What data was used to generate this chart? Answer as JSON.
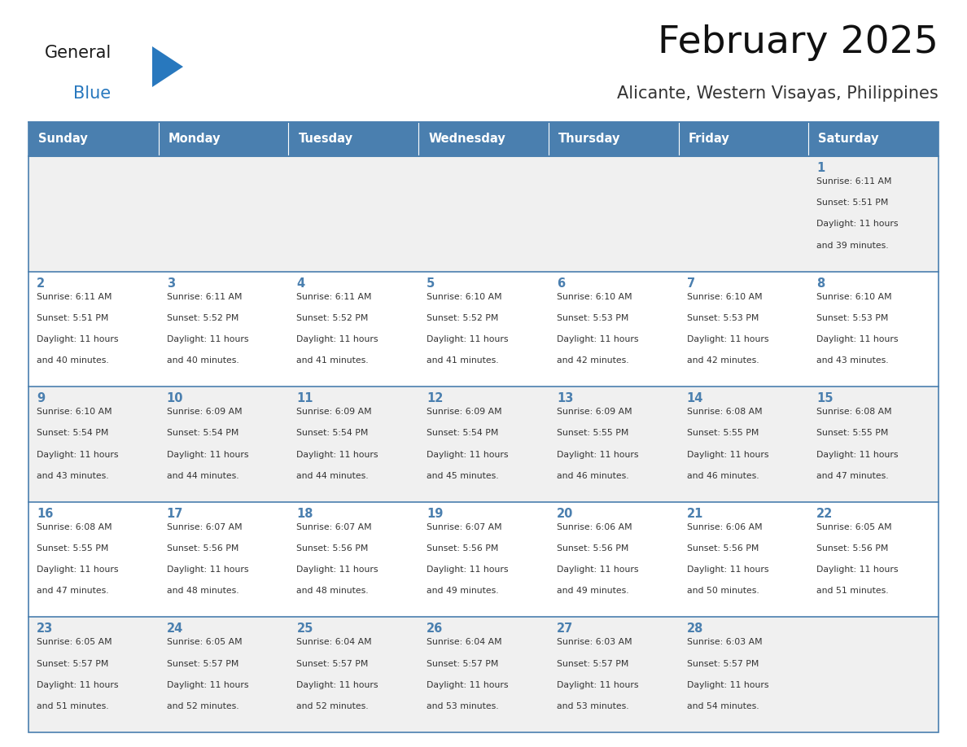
{
  "title": "February 2025",
  "subtitle": "Alicante, Western Visayas, Philippines",
  "days_of_week": [
    "Sunday",
    "Monday",
    "Tuesday",
    "Wednesday",
    "Thursday",
    "Friday",
    "Saturday"
  ],
  "header_bg": "#4a7faf",
  "header_text": "#ffffff",
  "row_bg_1": "#f0f0f0",
  "row_bg_2": "#ffffff",
  "cell_border": "#4a7faf",
  "day_number_color": "#4a7faf",
  "text_color": "#333333",
  "logo_general_color": "#1a1a1a",
  "logo_blue_color": "#2878be",
  "calendar_data": [
    {
      "day": 1,
      "col": 6,
      "row": 0,
      "sunrise": "6:11 AM",
      "sunset": "5:51 PM",
      "daylight": "11 hours and 39 minutes."
    },
    {
      "day": 2,
      "col": 0,
      "row": 1,
      "sunrise": "6:11 AM",
      "sunset": "5:51 PM",
      "daylight": "11 hours and 40 minutes."
    },
    {
      "day": 3,
      "col": 1,
      "row": 1,
      "sunrise": "6:11 AM",
      "sunset": "5:52 PM",
      "daylight": "11 hours and 40 minutes."
    },
    {
      "day": 4,
      "col": 2,
      "row": 1,
      "sunrise": "6:11 AM",
      "sunset": "5:52 PM",
      "daylight": "11 hours and 41 minutes."
    },
    {
      "day": 5,
      "col": 3,
      "row": 1,
      "sunrise": "6:10 AM",
      "sunset": "5:52 PM",
      "daylight": "11 hours and 41 minutes."
    },
    {
      "day": 6,
      "col": 4,
      "row": 1,
      "sunrise": "6:10 AM",
      "sunset": "5:53 PM",
      "daylight": "11 hours and 42 minutes."
    },
    {
      "day": 7,
      "col": 5,
      "row": 1,
      "sunrise": "6:10 AM",
      "sunset": "5:53 PM",
      "daylight": "11 hours and 42 minutes."
    },
    {
      "day": 8,
      "col": 6,
      "row": 1,
      "sunrise": "6:10 AM",
      "sunset": "5:53 PM",
      "daylight": "11 hours and 43 minutes."
    },
    {
      "day": 9,
      "col": 0,
      "row": 2,
      "sunrise": "6:10 AM",
      "sunset": "5:54 PM",
      "daylight": "11 hours and 43 minutes."
    },
    {
      "day": 10,
      "col": 1,
      "row": 2,
      "sunrise": "6:09 AM",
      "sunset": "5:54 PM",
      "daylight": "11 hours and 44 minutes."
    },
    {
      "day": 11,
      "col": 2,
      "row": 2,
      "sunrise": "6:09 AM",
      "sunset": "5:54 PM",
      "daylight": "11 hours and 44 minutes."
    },
    {
      "day": 12,
      "col": 3,
      "row": 2,
      "sunrise": "6:09 AM",
      "sunset": "5:54 PM",
      "daylight": "11 hours and 45 minutes."
    },
    {
      "day": 13,
      "col": 4,
      "row": 2,
      "sunrise": "6:09 AM",
      "sunset": "5:55 PM",
      "daylight": "11 hours and 46 minutes."
    },
    {
      "day": 14,
      "col": 5,
      "row": 2,
      "sunrise": "6:08 AM",
      "sunset": "5:55 PM",
      "daylight": "11 hours and 46 minutes."
    },
    {
      "day": 15,
      "col": 6,
      "row": 2,
      "sunrise": "6:08 AM",
      "sunset": "5:55 PM",
      "daylight": "11 hours and 47 minutes."
    },
    {
      "day": 16,
      "col": 0,
      "row": 3,
      "sunrise": "6:08 AM",
      "sunset": "5:55 PM",
      "daylight": "11 hours and 47 minutes."
    },
    {
      "day": 17,
      "col": 1,
      "row": 3,
      "sunrise": "6:07 AM",
      "sunset": "5:56 PM",
      "daylight": "11 hours and 48 minutes."
    },
    {
      "day": 18,
      "col": 2,
      "row": 3,
      "sunrise": "6:07 AM",
      "sunset": "5:56 PM",
      "daylight": "11 hours and 48 minutes."
    },
    {
      "day": 19,
      "col": 3,
      "row": 3,
      "sunrise": "6:07 AM",
      "sunset": "5:56 PM",
      "daylight": "11 hours and 49 minutes."
    },
    {
      "day": 20,
      "col": 4,
      "row": 3,
      "sunrise": "6:06 AM",
      "sunset": "5:56 PM",
      "daylight": "11 hours and 49 minutes."
    },
    {
      "day": 21,
      "col": 5,
      "row": 3,
      "sunrise": "6:06 AM",
      "sunset": "5:56 PM",
      "daylight": "11 hours and 50 minutes."
    },
    {
      "day": 22,
      "col": 6,
      "row": 3,
      "sunrise": "6:05 AM",
      "sunset": "5:56 PM",
      "daylight": "11 hours and 51 minutes."
    },
    {
      "day": 23,
      "col": 0,
      "row": 4,
      "sunrise": "6:05 AM",
      "sunset": "5:57 PM",
      "daylight": "11 hours and 51 minutes."
    },
    {
      "day": 24,
      "col": 1,
      "row": 4,
      "sunrise": "6:05 AM",
      "sunset": "5:57 PM",
      "daylight": "11 hours and 52 minutes."
    },
    {
      "day": 25,
      "col": 2,
      "row": 4,
      "sunrise": "6:04 AM",
      "sunset": "5:57 PM",
      "daylight": "11 hours and 52 minutes."
    },
    {
      "day": 26,
      "col": 3,
      "row": 4,
      "sunrise": "6:04 AM",
      "sunset": "5:57 PM",
      "daylight": "11 hours and 53 minutes."
    },
    {
      "day": 27,
      "col": 4,
      "row": 4,
      "sunrise": "6:03 AM",
      "sunset": "5:57 PM",
      "daylight": "11 hours and 53 minutes."
    },
    {
      "day": 28,
      "col": 5,
      "row": 4,
      "sunrise": "6:03 AM",
      "sunset": "5:57 PM",
      "daylight": "11 hours and 54 minutes."
    }
  ],
  "fig_width": 11.88,
  "fig_height": 9.18,
  "dpi": 100
}
